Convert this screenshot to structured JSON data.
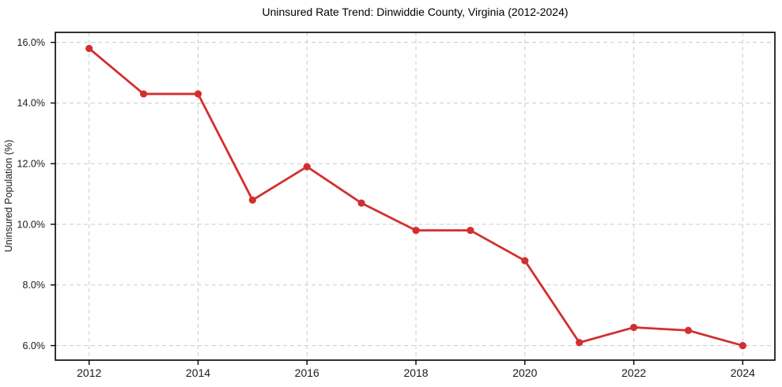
{
  "chart_data": {
    "type": "line",
    "title": "Uninsured Rate Trend: Dinwiddie County, Virginia (2012-2024)",
    "xlabel": "",
    "ylabel": "Uninsured Population (%)",
    "x": [
      2012,
      2013,
      2014,
      2015,
      2016,
      2017,
      2018,
      2019,
      2020,
      2021,
      2022,
      2023,
      2024
    ],
    "values": [
      15.8,
      14.3,
      14.3,
      10.8,
      11.9,
      10.7,
      9.8,
      9.8,
      8.8,
      6.1,
      6.6,
      6.5,
      6.0
    ],
    "xticks": [
      2012,
      2014,
      2016,
      2018,
      2020,
      2022,
      2024
    ],
    "yticks": [
      6,
      8,
      10,
      12,
      14,
      16
    ],
    "ytick_labels": [
      "6.0%",
      "8.0%",
      "10.0%",
      "12.0%",
      "14.0%",
      "16.0%"
    ],
    "xlim": [
      2011.38,
      2024.59
    ],
    "ylim": [
      5.52,
      16.33
    ],
    "grid": true,
    "grid_style": "dashed",
    "legend": "none",
    "colors": {
      "line": "#d32f2f",
      "marker": "#d32f2f",
      "grid": "#cccccc",
      "axis": "#000000",
      "text": "#1a1a1a",
      "background": "#ffffff"
    }
  }
}
